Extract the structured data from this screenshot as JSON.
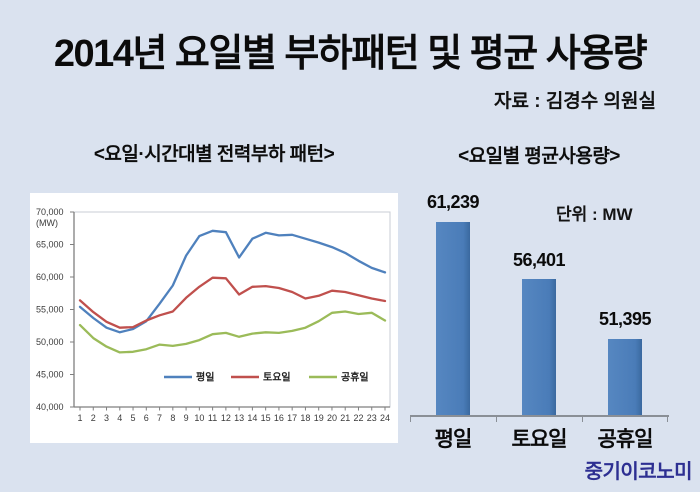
{
  "page": {
    "title": "2014년 요일별 부하패턴 및 평균 사용량",
    "source": "자료 : 김경수 의원실",
    "logo": "중기이코노미",
    "background": "#dae2ef"
  },
  "sections": {
    "left_header": "<요일·시간대별 전력부하 패턴>",
    "right_header": "<요일별 평균사용량>",
    "unit_label": "단위 : MW"
  },
  "chart_data": [
    {
      "type": "line",
      "title": "요일·시간대별 전력부하 패턴",
      "ylabel": "(MW)",
      "x": [
        1,
        2,
        3,
        4,
        5,
        6,
        7,
        8,
        9,
        10,
        11,
        12,
        13,
        14,
        15,
        16,
        17,
        18,
        19,
        20,
        21,
        22,
        23,
        24
      ],
      "ylim": [
        40000,
        70000
      ],
      "ytick_step": 5000,
      "grid": false,
      "legend_position": "inside-bottom",
      "series": [
        {
          "name": "평일",
          "color": "#4f81bd",
          "values": [
            55400,
            53700,
            52200,
            51500,
            52000,
            53200,
            55900,
            58700,
            63300,
            66300,
            67100,
            66900,
            63000,
            65900,
            66800,
            66400,
            66500,
            65900,
            65300,
            64600,
            63700,
            62500,
            61400,
            60700
          ]
        },
        {
          "name": "토요일",
          "color": "#c0504d",
          "values": [
            56400,
            54600,
            53100,
            52200,
            52300,
            53300,
            54100,
            54700,
            56800,
            58500,
            59900,
            59800,
            57300,
            58500,
            58600,
            58300,
            57700,
            56700,
            57100,
            57900,
            57700,
            57200,
            56700,
            56300
          ]
        },
        {
          "name": "공휴일",
          "color": "#9bbb59",
          "values": [
            52600,
            50600,
            49300,
            48400,
            48500,
            48900,
            49600,
            49400,
            49700,
            50300,
            51200,
            51400,
            50800,
            51300,
            51500,
            51400,
            51700,
            52200,
            53200,
            54500,
            54700,
            54300,
            54500,
            53300
          ]
        }
      ]
    },
    {
      "type": "bar",
      "title": "요일별 평균사용량",
      "unit": "단위 : MW",
      "categories": [
        "평일",
        "토요일",
        "공휴일"
      ],
      "values": [
        61239,
        56401,
        51395
      ],
      "bar_color": "#4a7cb8",
      "baseline": 45000,
      "ylim": [
        45000,
        62500
      ]
    }
  ]
}
